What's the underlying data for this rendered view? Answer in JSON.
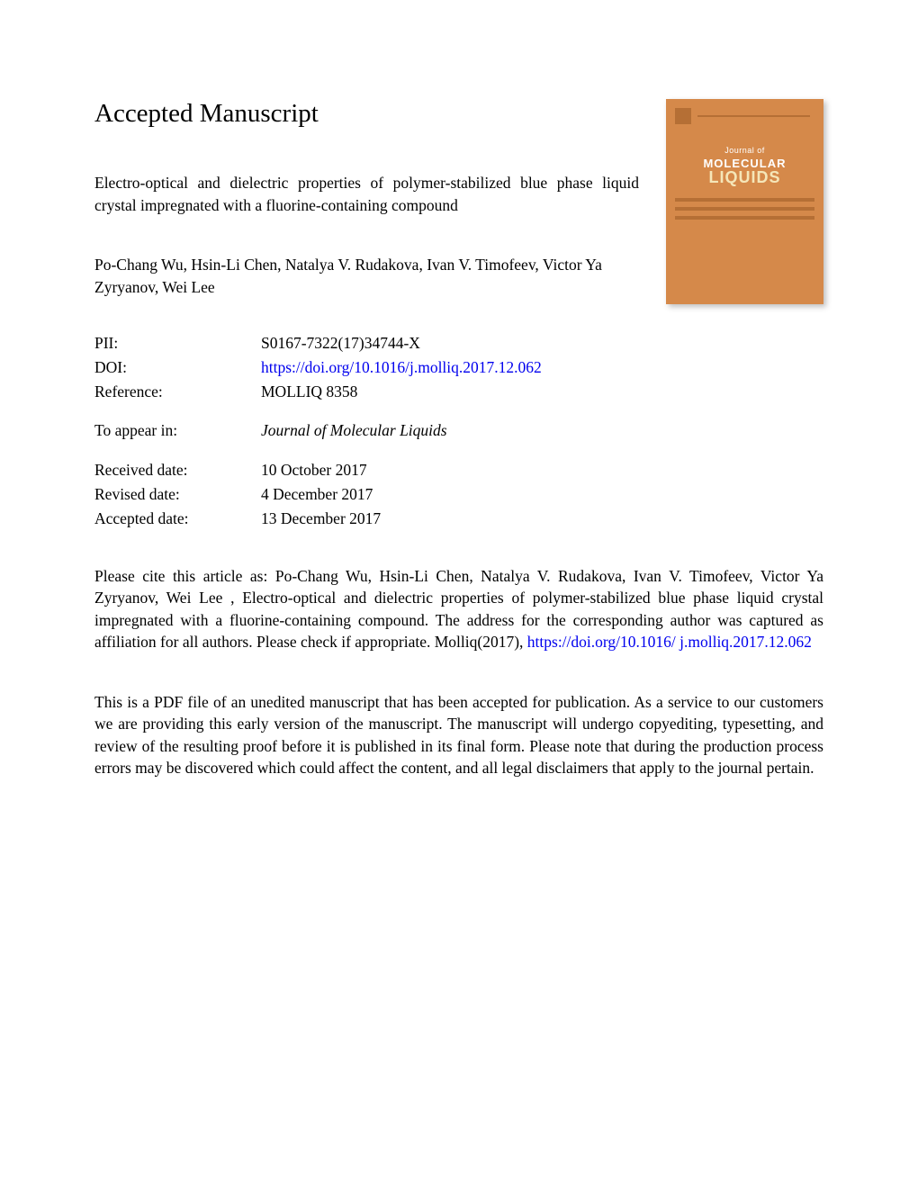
{
  "heading": "Accepted Manuscript",
  "article_title": "Electro-optical and dielectric properties of polymer-stabilized blue phase liquid crystal impregnated with a fluorine-containing compound",
  "authors": "Po-Chang Wu, Hsin-Li Chen, Natalya V. Rudakova, Ivan V. Timofeev, Victor Ya Zyryanov, Wei Lee",
  "journal_cover": {
    "journal_of": "Journal of",
    "molecular": "MOLECULAR",
    "liquids": "LIQUIDS",
    "bg_color": "#d5894a",
    "accent_color": "#b56f35",
    "liquids_color": "#f5e6b8"
  },
  "metadata": {
    "pii_label": "PII:",
    "pii_value": "S0167-7322(17)34744-X",
    "doi_label": "DOI:",
    "doi_value": "https://doi.org/10.1016/j.molliq.2017.12.062",
    "reference_label": "Reference:",
    "reference_value": "MOLLIQ 8358",
    "appear_label": "To appear in:",
    "appear_value": "Journal of Molecular Liquids",
    "received_label": "Received date:",
    "received_value": "10 October 2017",
    "revised_label": "Revised date:",
    "revised_value": "4 December 2017",
    "accepted_label": "Accepted date:",
    "accepted_value": "13 December 2017"
  },
  "citation": {
    "prefix": "Please cite this article as: Po-Chang Wu, Hsin-Li Chen, Natalya V. Rudakova, Ivan V. Timofeev, Victor Ya Zyryanov, Wei Lee , Electro-optical and dielectric properties of polymer-stabilized blue phase liquid crystal impregnated with a fluorine-containing compound. The address for the corresponding author was captured as affiliation for all authors. Please check if appropriate. Molliq(2017), ",
    "link1": "https://doi.org/10.1016/",
    "link2": "j.molliq.2017.12.062"
  },
  "disclaimer": "This is a PDF file of an unedited manuscript that has been accepted for publication. As a service to our customers we are providing this early version of the manuscript. The manuscript will undergo copyediting, typesetting, and review of the resulting proof before it is published in its final form. Please note that during the production process errors may be discovered which could affect the content, and all legal disclaimers that apply to the journal pertain.",
  "link_color": "#0000ee"
}
